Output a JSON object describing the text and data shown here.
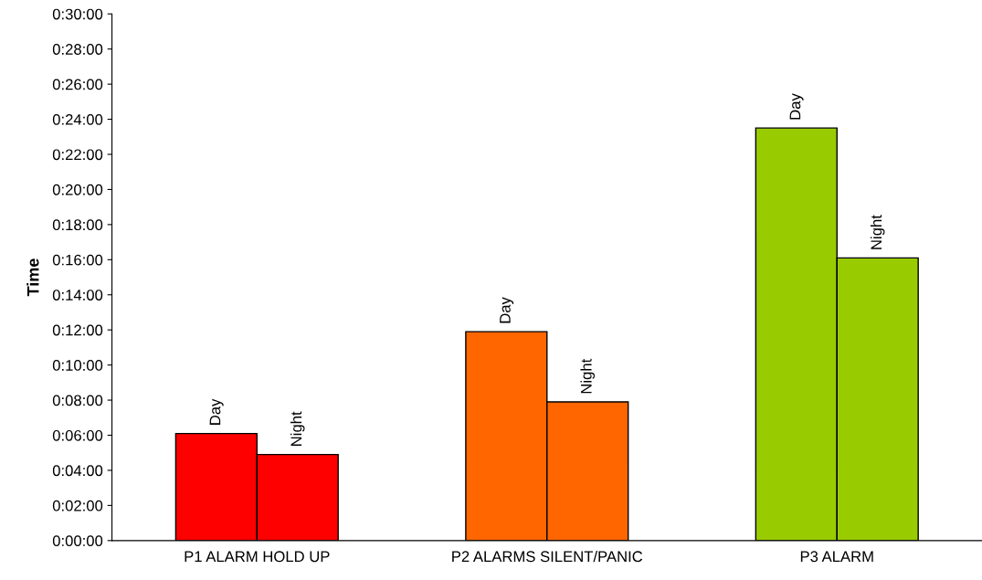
{
  "chart_data": {
    "type": "bar",
    "ylabel": "Time",
    "categories": [
      "P1 ALARM HOLD UP",
      "P2 ALARMS SILENT/PANIC",
      "P3 ALARM"
    ],
    "series": [
      {
        "name": "Day",
        "colors": [
          "#ff0000",
          "#ff6600",
          "#99cc00"
        ],
        "values": [
          6.1,
          11.9,
          23.5
        ]
      },
      {
        "name": "Night",
        "colors": [
          "#ff0000",
          "#ff6600",
          "#99cc00"
        ],
        "values": [
          4.9,
          7.9,
          16.1
        ]
      }
    ],
    "ylim": [
      0,
      30
    ],
    "yticks": [
      {
        "value": 0,
        "label": "0:00:00"
      },
      {
        "value": 2,
        "label": "0:02:00"
      },
      {
        "value": 4,
        "label": "0:04:00"
      },
      {
        "value": 6,
        "label": "0:06:00"
      },
      {
        "value": 8,
        "label": "0:08:00"
      },
      {
        "value": 10,
        "label": "0:10:00"
      },
      {
        "value": 12,
        "label": "0:12:00"
      },
      {
        "value": 14,
        "label": "0:14:00"
      },
      {
        "value": 16,
        "label": "0:16:00"
      },
      {
        "value": 18,
        "label": "0:18:00"
      },
      {
        "value": 20,
        "label": "0:20:00"
      },
      {
        "value": 22,
        "label": "0:22:00"
      },
      {
        "value": 24,
        "label": "0:24:00"
      },
      {
        "value": 26,
        "label": "0:26:00"
      },
      {
        "value": 28,
        "label": "0:28:00"
      },
      {
        "value": 30,
        "label": "0:30:00"
      }
    ],
    "grid": false,
    "legend": false
  }
}
